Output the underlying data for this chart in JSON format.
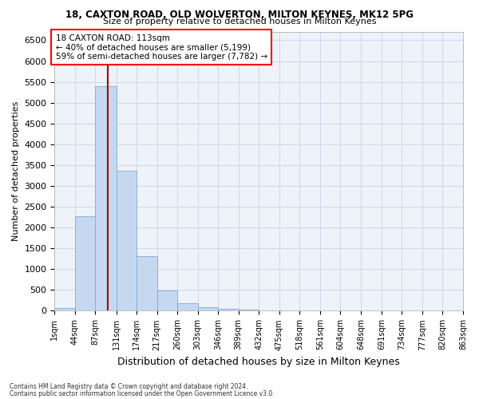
{
  "title1": "18, CAXTON ROAD, OLD WOLVERTON, MILTON KEYNES, MK12 5PG",
  "title2": "Size of property relative to detached houses in Milton Keynes",
  "xlabel": "Distribution of detached houses by size in Milton Keynes",
  "ylabel": "Number of detached properties",
  "footnote1": "Contains HM Land Registry data © Crown copyright and database right 2024.",
  "footnote2": "Contains public sector information licensed under the Open Government Licence v3.0.",
  "bar_color": "#c5d8f0",
  "bar_edge_color": "#7aadd4",
  "grid_color": "#d0d8e8",
  "background_color": "#eef2f9",
  "vline_color": "#aa0000",
  "vline_value": 113,
  "annotation_text": "18 CAXTON ROAD: 113sqm\n← 40% of detached houses are smaller (5,199)\n59% of semi-detached houses are larger (7,782) →",
  "bin_edges": [
    1,
    44,
    87,
    131,
    174,
    217,
    260,
    303,
    346,
    389,
    432,
    475,
    518,
    561,
    604,
    648,
    691,
    734,
    777,
    820,
    863
  ],
  "bar_heights": [
    75,
    2280,
    5400,
    3360,
    1310,
    480,
    190,
    90,
    55,
    30,
    10,
    5,
    0,
    0,
    0,
    0,
    0,
    0,
    0,
    0
  ],
  "ylim": [
    0,
    6700
  ],
  "yticks": [
    0,
    500,
    1000,
    1500,
    2000,
    2500,
    3000,
    3500,
    4000,
    4500,
    5000,
    5500,
    6000,
    6500
  ],
  "tick_labels": [
    "1sqm",
    "44sqm",
    "87sqm",
    "131sqm",
    "174sqm",
    "217sqm",
    "260sqm",
    "303sqm",
    "346sqm",
    "389sqm",
    "432sqm",
    "475sqm",
    "518sqm",
    "561sqm",
    "604sqm",
    "648sqm",
    "691sqm",
    "734sqm",
    "777sqm",
    "820sqm",
    "863sqm"
  ]
}
